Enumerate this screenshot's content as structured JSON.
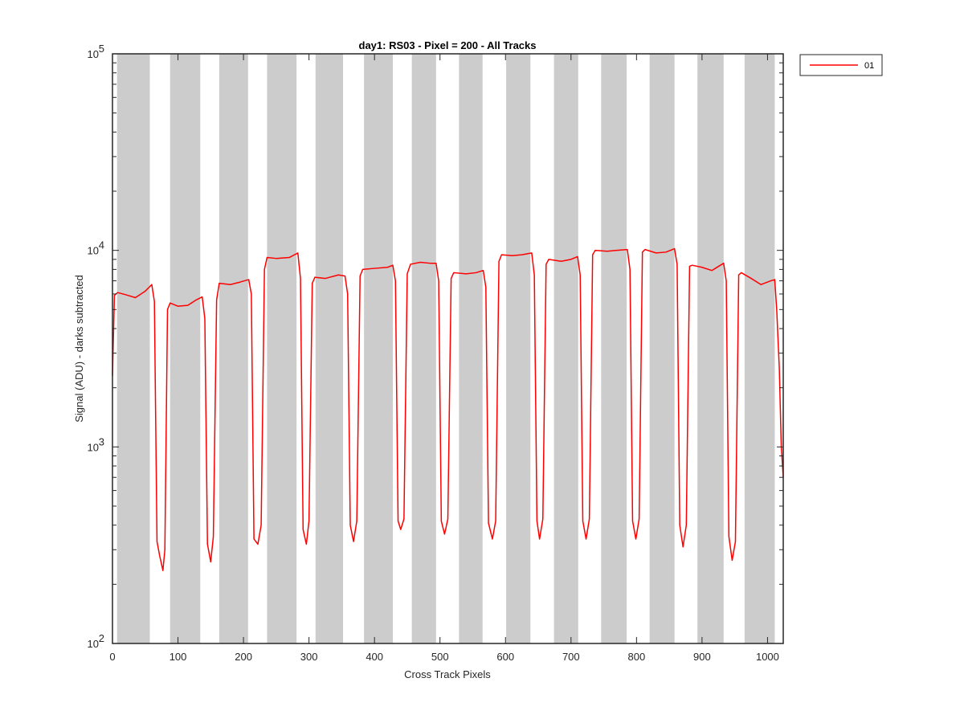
{
  "chart_data": {
    "type": "line",
    "title": "day1: RS03 - Pixel = 200 - All Tracks",
    "xlabel": "Cross Track Pixels",
    "ylabel": "Signal (ADU) - darks subtracted",
    "xlim": [
      0,
      1024
    ],
    "ylim": [
      100,
      100000
    ],
    "yscale": "log",
    "grid": false,
    "legend_position": "outside top-right",
    "x_ticks": [
      0,
      100,
      200,
      300,
      400,
      500,
      600,
      700,
      800,
      900,
      1000
    ],
    "x_tick_labels": [
      "0",
      "100",
      "200",
      "300",
      "400",
      "500",
      "600",
      "700",
      "800",
      "900",
      "1000"
    ],
    "y_ticks": [
      100,
      1000,
      10000,
      100000
    ],
    "y_tick_labels": [
      {
        "base": "10",
        "exp": "2"
      },
      {
        "base": "10",
        "exp": "3"
      },
      {
        "base": "10",
        "exp": "4"
      },
      {
        "base": "10",
        "exp": "5"
      }
    ],
    "shaded_bands": [
      [
        7,
        57
      ],
      [
        88,
        134
      ],
      [
        163,
        207
      ],
      [
        236,
        281
      ],
      [
        310,
        352
      ],
      [
        384,
        428
      ],
      [
        457,
        494
      ],
      [
        529,
        565
      ],
      [
        601,
        638
      ],
      [
        674,
        711
      ],
      [
        746,
        785
      ],
      [
        820,
        858
      ],
      [
        893,
        933
      ],
      [
        965,
        1011
      ]
    ],
    "band_color": "#cccccc",
    "series": [
      {
        "name": "01",
        "color": "#ff0000",
        "points": [
          [
            0,
            2300
          ],
          [
            3,
            5900
          ],
          [
            8,
            6100
          ],
          [
            20,
            5950
          ],
          [
            35,
            5750
          ],
          [
            50,
            6200
          ],
          [
            60,
            6700
          ],
          [
            64,
            5500
          ],
          [
            68,
            330
          ],
          [
            72,
            280
          ],
          [
            77,
            235
          ],
          [
            80,
            300
          ],
          [
            84,
            5000
          ],
          [
            88,
            5400
          ],
          [
            100,
            5200
          ],
          [
            115,
            5250
          ],
          [
            128,
            5600
          ],
          [
            137,
            5800
          ],
          [
            141,
            4500
          ],
          [
            145,
            320
          ],
          [
            150,
            260
          ],
          [
            154,
            350
          ],
          [
            159,
            5600
          ],
          [
            163,
            6800
          ],
          [
            180,
            6700
          ],
          [
            195,
            6900
          ],
          [
            208,
            7100
          ],
          [
            212,
            6000
          ],
          [
            216,
            340
          ],
          [
            222,
            320
          ],
          [
            227,
            400
          ],
          [
            232,
            8000
          ],
          [
            236,
            9200
          ],
          [
            250,
            9100
          ],
          [
            270,
            9200
          ],
          [
            283,
            9700
          ],
          [
            287,
            7200
          ],
          [
            291,
            380
          ],
          [
            296,
            320
          ],
          [
            300,
            420
          ],
          [
            305,
            6800
          ],
          [
            309,
            7300
          ],
          [
            325,
            7200
          ],
          [
            345,
            7500
          ],
          [
            355,
            7400
          ],
          [
            359,
            6000
          ],
          [
            363,
            400
          ],
          [
            368,
            330
          ],
          [
            373,
            420
          ],
          [
            378,
            7400
          ],
          [
            382,
            8000
          ],
          [
            400,
            8100
          ],
          [
            420,
            8200
          ],
          [
            428,
            8400
          ],
          [
            432,
            7000
          ],
          [
            436,
            420
          ],
          [
            440,
            380
          ],
          [
            445,
            430
          ],
          [
            450,
            7600
          ],
          [
            455,
            8500
          ],
          [
            470,
            8700
          ],
          [
            485,
            8600
          ],
          [
            494,
            8600
          ],
          [
            498,
            7000
          ],
          [
            502,
            420
          ],
          [
            507,
            360
          ],
          [
            512,
            430
          ],
          [
            517,
            7200
          ],
          [
            521,
            7700
          ],
          [
            540,
            7600
          ],
          [
            555,
            7700
          ],
          [
            566,
            7900
          ],
          [
            570,
            6500
          ],
          [
            574,
            410
          ],
          [
            580,
            340
          ],
          [
            585,
            420
          ],
          [
            590,
            8800
          ],
          [
            594,
            9500
          ],
          [
            610,
            9400
          ],
          [
            625,
            9500
          ],
          [
            640,
            9700
          ],
          [
            644,
            7500
          ],
          [
            648,
            420
          ],
          [
            652,
            340
          ],
          [
            657,
            430
          ],
          [
            662,
            8500
          ],
          [
            666,
            9000
          ],
          [
            685,
            8800
          ],
          [
            700,
            9000
          ],
          [
            710,
            9300
          ],
          [
            714,
            7500
          ],
          [
            718,
            420
          ],
          [
            723,
            340
          ],
          [
            728,
            430
          ],
          [
            733,
            9500
          ],
          [
            737,
            10000
          ],
          [
            755,
            9900
          ],
          [
            770,
            10000
          ],
          [
            786,
            10100
          ],
          [
            790,
            8000
          ],
          [
            794,
            420
          ],
          [
            799,
            340
          ],
          [
            804,
            430
          ],
          [
            809,
            9800
          ],
          [
            813,
            10100
          ],
          [
            830,
            9700
          ],
          [
            845,
            9800
          ],
          [
            858,
            10200
          ],
          [
            862,
            8500
          ],
          [
            866,
            400
          ],
          [
            871,
            310
          ],
          [
            876,
            400
          ],
          [
            881,
            8300
          ],
          [
            885,
            8400
          ],
          [
            900,
            8200
          ],
          [
            915,
            7900
          ],
          [
            933,
            8600
          ],
          [
            937,
            7000
          ],
          [
            941,
            350
          ],
          [
            946,
            265
          ],
          [
            951,
            330
          ],
          [
            956,
            7500
          ],
          [
            960,
            7700
          ],
          [
            975,
            7200
          ],
          [
            990,
            6700
          ],
          [
            1005,
            7000
          ],
          [
            1011,
            7100
          ],
          [
            1014,
            5000
          ],
          [
            1018,
            2500
          ],
          [
            1021,
            1000
          ],
          [
            1024,
            700
          ]
        ]
      }
    ]
  }
}
